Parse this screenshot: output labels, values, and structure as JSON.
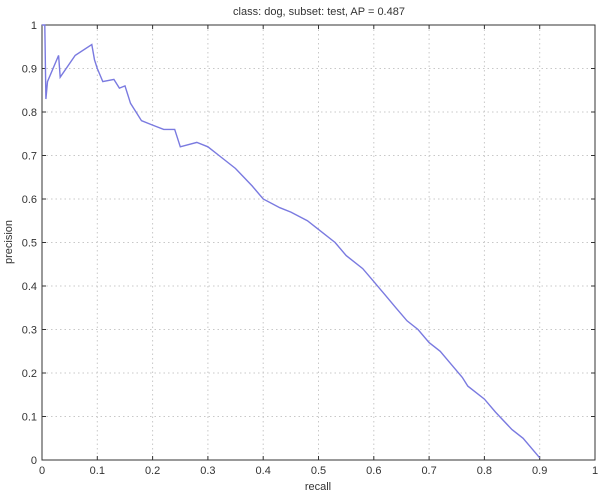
{
  "chart_data": {
    "type": "line",
    "title": "class: dog, subset: test, AP = 0.487",
    "xlabel": "recall",
    "ylabel": "precision",
    "xlim": [
      0,
      1
    ],
    "ylim": [
      0,
      1
    ],
    "grid": true,
    "xticks": [
      "0",
      "0.1",
      "0.2",
      "0.3",
      "0.4",
      "0.5",
      "0.6",
      "0.7",
      "0.8",
      "0.9",
      "1"
    ],
    "yticks": [
      "0",
      "0.1",
      "0.2",
      "0.3",
      "0.4",
      "0.5",
      "0.6",
      "0.7",
      "0.8",
      "0.9",
      "1"
    ],
    "line_color": "#7a7ae0",
    "series": [
      {
        "x": [
          0,
          0.005,
          0.007,
          0.01,
          0.03,
          0.033,
          0.06,
          0.09,
          0.095,
          0.1,
          0.11,
          0.13,
          0.14,
          0.15,
          0.16,
          0.17,
          0.18,
          0.2,
          0.22,
          0.24,
          0.25,
          0.28,
          0.3,
          0.32,
          0.35,
          0.38,
          0.4,
          0.43,
          0.45,
          0.48,
          0.5,
          0.53,
          0.55,
          0.58,
          0.6,
          0.62,
          0.64,
          0.66,
          0.68,
          0.7,
          0.72,
          0.74,
          0.76,
          0.77,
          0.8,
          0.82,
          0.85,
          0.87,
          0.9
        ],
        "y": [
          1,
          1,
          0.83,
          0.87,
          0.93,
          0.88,
          0.93,
          0.955,
          0.92,
          0.9,
          0.87,
          0.875,
          0.855,
          0.86,
          0.82,
          0.8,
          0.78,
          0.77,
          0.76,
          0.76,
          0.72,
          0.73,
          0.72,
          0.7,
          0.67,
          0.63,
          0.6,
          0.58,
          0.57,
          0.55,
          0.53,
          0.5,
          0.47,
          0.44,
          0.41,
          0.38,
          0.35,
          0.32,
          0.3,
          0.27,
          0.25,
          0.22,
          0.19,
          0.17,
          0.14,
          0.11,
          0.07,
          0.05,
          0.005
        ]
      }
    ]
  }
}
